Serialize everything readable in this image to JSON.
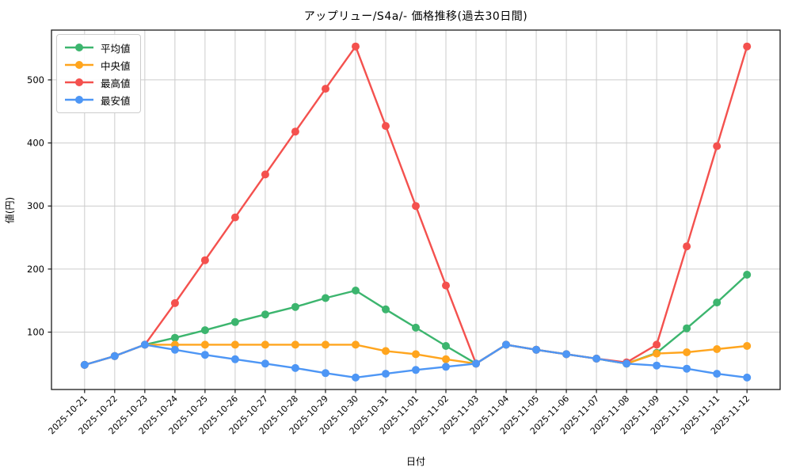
{
  "title": "アップリュー/S4a/- 価格推移(過去30日間)",
  "chart_data": {
    "type": "line",
    "title": "アップリュー/S4a/- 価格推移(過去30日間)",
    "xlabel": "日付",
    "ylabel": "値(円)",
    "legend_position": "upper left",
    "grid": true,
    "x": [
      "2025-10-21",
      "2025-10-22",
      "2025-10-23",
      "2025-10-24",
      "2025-10-25",
      "2025-10-26",
      "2025-10-27",
      "2025-10-28",
      "2025-10-29",
      "2025-10-30",
      "2025-10-31",
      "2025-11-01",
      "2025-11-02",
      "2025-11-03",
      "2025-11-04",
      "2025-11-05",
      "2025-11-06",
      "2025-11-07",
      "2025-11-08",
      "2025-11-09",
      "2025-11-10",
      "2025-11-11",
      "2025-11-12"
    ],
    "yticks": [
      100,
      200,
      300,
      400,
      500
    ],
    "ylim": [
      9,
      579
    ],
    "series": [
      {
        "key": "mean",
        "name": "平均値",
        "color": "#3cb56e",
        "values": [
          48,
          62,
          80,
          91,
          103,
          116,
          128,
          140,
          154,
          166,
          136,
          107,
          78,
          50,
          80,
          72,
          65,
          58,
          50,
          67,
          106,
          147,
          191
        ]
      },
      {
        "key": "median",
        "name": "中央値",
        "color": "#ffa51e",
        "values": [
          48,
          62,
          80,
          80,
          80,
          80,
          80,
          80,
          80,
          80,
          70,
          65,
          57,
          50,
          80,
          72,
          65,
          58,
          50,
          66,
          68,
          73,
          78
        ]
      },
      {
        "key": "max",
        "name": "最高値",
        "color": "#f4514e",
        "values": [
          48,
          62,
          80,
          146,
          214,
          282,
          350,
          418,
          486,
          553,
          427,
          300,
          174,
          50,
          80,
          72,
          65,
          58,
          52,
          80,
          236,
          395,
          553
        ]
      },
      {
        "key": "min",
        "name": "最安値",
        "color": "#4d96f5",
        "values": [
          48,
          62,
          80,
          72,
          64,
          57,
          50,
          43,
          35,
          28,
          34,
          40,
          45,
          50,
          80,
          72,
          65,
          58,
          50,
          47,
          42,
          34,
          28
        ]
      }
    ],
    "colors": {
      "grid": "#cccccc",
      "spine": "#1a1a1a",
      "background": "#ffffff",
      "tick_text": "#000000"
    }
  }
}
